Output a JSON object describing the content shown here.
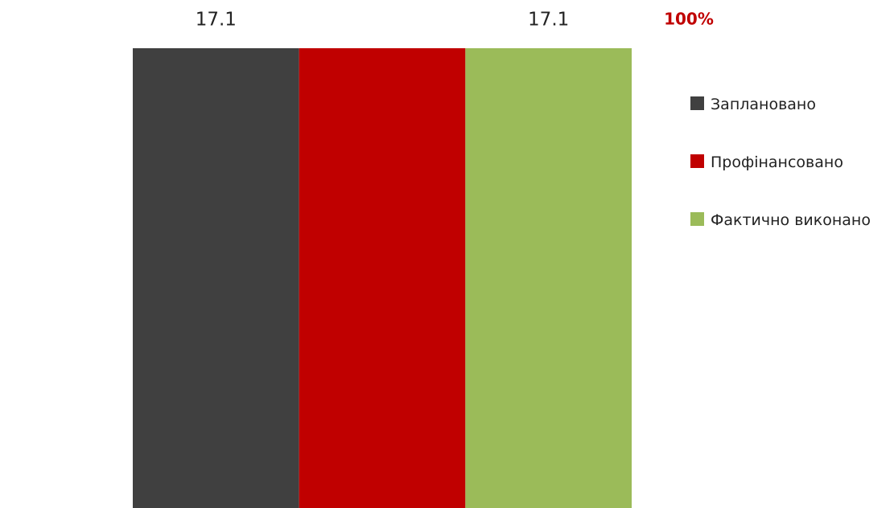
{
  "chart_data": {
    "type": "bar",
    "annotation": "100%",
    "categories": [
      null
    ],
    "series": [
      {
        "name": "Заплановано",
        "color": "#404040",
        "values": [
          17.1
        ],
        "data_labels": true
      },
      {
        "name": "Профінансовано",
        "color": "#c00000",
        "values": [
          17.1
        ],
        "data_labels": false
      },
      {
        "name": "Фактично виконано",
        "color": "#9bbb59",
        "values": [
          17.1
        ],
        "data_labels": true
      }
    ],
    "ylim": [
      0,
      17.1
    ],
    "legend": "right"
  }
}
